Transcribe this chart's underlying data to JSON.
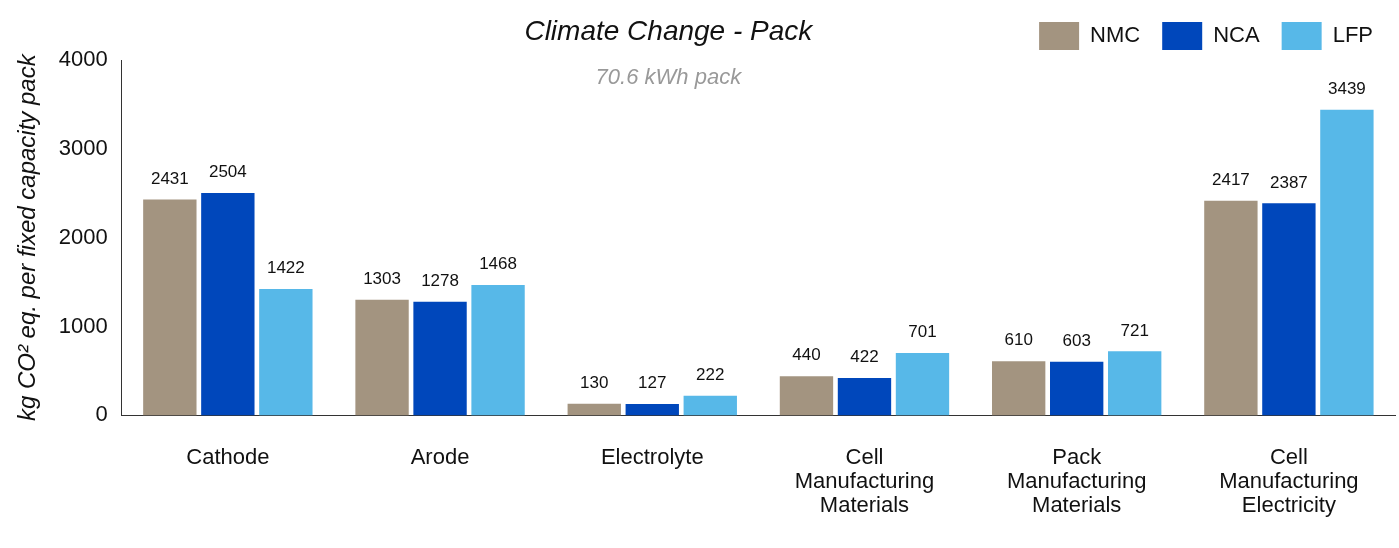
{
  "chart_data": {
    "type": "bar",
    "title": "Climate Change - Pack",
    "subtitle": "70.6 kWh pack",
    "ylabel": "kg CO² eq. per fixed capacity pack",
    "categories": [
      "Cathode",
      "Arode",
      "Electrolyte",
      "Cell Manufacturing Materials",
      "Pack Manufacturing Materials",
      "Cell Manufacturing Electricity"
    ],
    "series": [
      {
        "name": "NMC",
        "color": "#a39480",
        "values": [
          2431,
          1303,
          130,
          440,
          610,
          2417
        ]
      },
      {
        "name": "NCA",
        "color": "#0047bb",
        "values": [
          2504,
          1278,
          127,
          422,
          603,
          2387
        ]
      },
      {
        "name": "LFP",
        "color": "#57b8e8",
        "values": [
          1422,
          1468,
          222,
          701,
          721,
          3439
        ]
      }
    ],
    "ylim": [
      0,
      4000
    ],
    "yticks": [
      0,
      1000,
      2000,
      3000,
      4000
    ],
    "grid": false,
    "legend": "top right",
    "data_labels": true
  }
}
